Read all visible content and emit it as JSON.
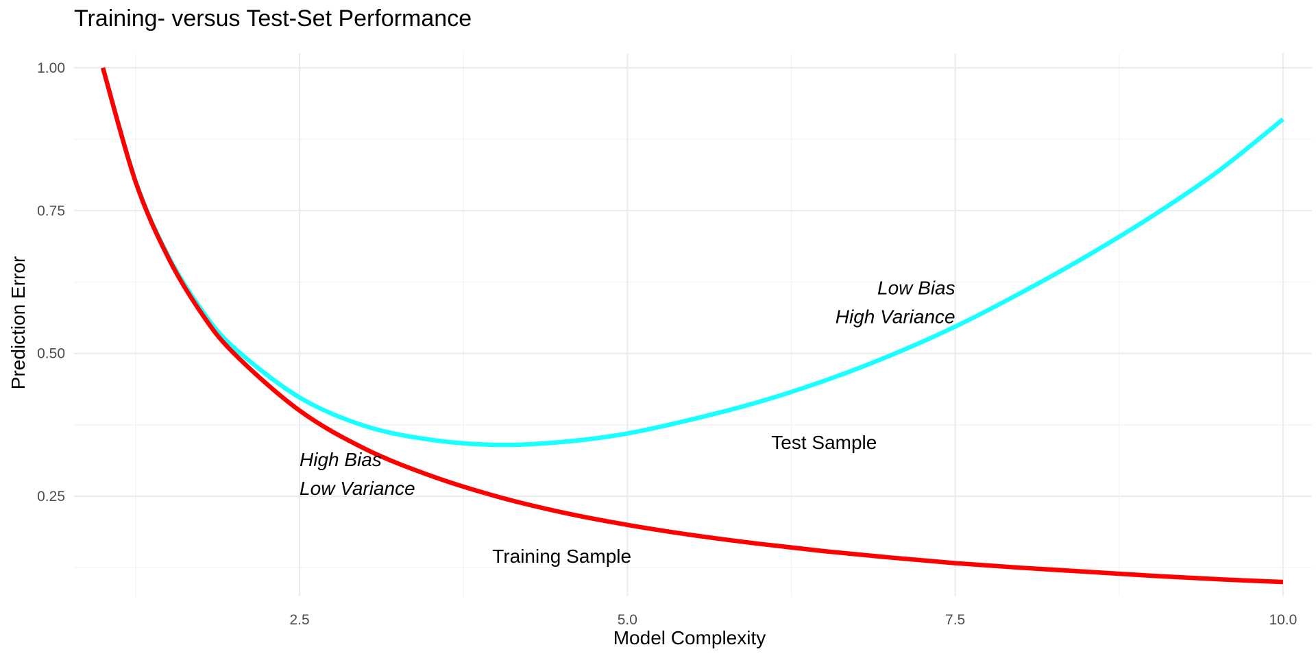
{
  "chart_data": {
    "type": "line",
    "title": "Training- versus Test-Set Performance",
    "xlabel": "Model Complexity",
    "ylabel": "Prediction Error",
    "xlim": [
      0.78,
      10.22
    ],
    "ylim": [
      0.075,
      1.025
    ],
    "xticks": [
      2.5,
      5.0,
      7.5,
      10.0
    ],
    "xtick_labels": [
      "2.5",
      "5.0",
      "7.5",
      "10.0"
    ],
    "yticks": [
      0.25,
      0.5,
      0.75,
      1.0
    ],
    "ytick_labels": [
      "0.25",
      "0.50",
      "0.75",
      "1.00"
    ],
    "grid": true,
    "legend": "none",
    "series": [
      {
        "name": "Training Sample",
        "color": "#ff0000",
        "x": [
          1.0,
          1.25,
          1.5,
          1.75,
          2.0,
          2.5,
          3.0,
          3.5,
          4.0,
          4.5,
          5.0,
          5.5,
          6.0,
          6.5,
          7.0,
          7.5,
          8.0,
          8.5,
          9.0,
          9.5,
          10.0
        ],
        "y": [
          1.0,
          0.8,
          0.667,
          0.571,
          0.5,
          0.4,
          0.333,
          0.286,
          0.25,
          0.222,
          0.2,
          0.182,
          0.167,
          0.154,
          0.143,
          0.133,
          0.125,
          0.118,
          0.111,
          0.105,
          0.1
        ]
      },
      {
        "name": "Test Sample",
        "color": "#1affff",
        "x": [
          1.0,
          1.25,
          1.5,
          1.75,
          2.0,
          2.5,
          3.0,
          3.5,
          4.0,
          4.5,
          5.0,
          5.5,
          6.0,
          6.5,
          7.0,
          7.5,
          8.0,
          8.5,
          9.0,
          9.5,
          10.0
        ],
        "y": [
          1.0,
          0.801,
          0.67,
          0.577,
          0.51,
          0.423,
          0.373,
          0.349,
          0.34,
          0.345,
          0.36,
          0.385,
          0.415,
          0.452,
          0.496,
          0.547,
          0.606,
          0.67,
          0.74,
          0.818,
          0.91
        ]
      }
    ],
    "annotations": [
      {
        "lines": [
          "Low Bias",
          "High Variance"
        ],
        "x": 7.5,
        "y": 0.59,
        "align": "right",
        "italic": true
      },
      {
        "lines": [
          "High Bias",
          "Low Variance"
        ],
        "x": 2.5,
        "y": 0.29,
        "align": "left",
        "italic": true
      },
      {
        "lines": [
          "Test Sample"
        ],
        "x": 6.5,
        "y": 0.345,
        "align": "center",
        "italic": false
      },
      {
        "lines": [
          "Training Sample"
        ],
        "x": 4.5,
        "y": 0.146,
        "align": "center",
        "italic": false
      }
    ]
  }
}
